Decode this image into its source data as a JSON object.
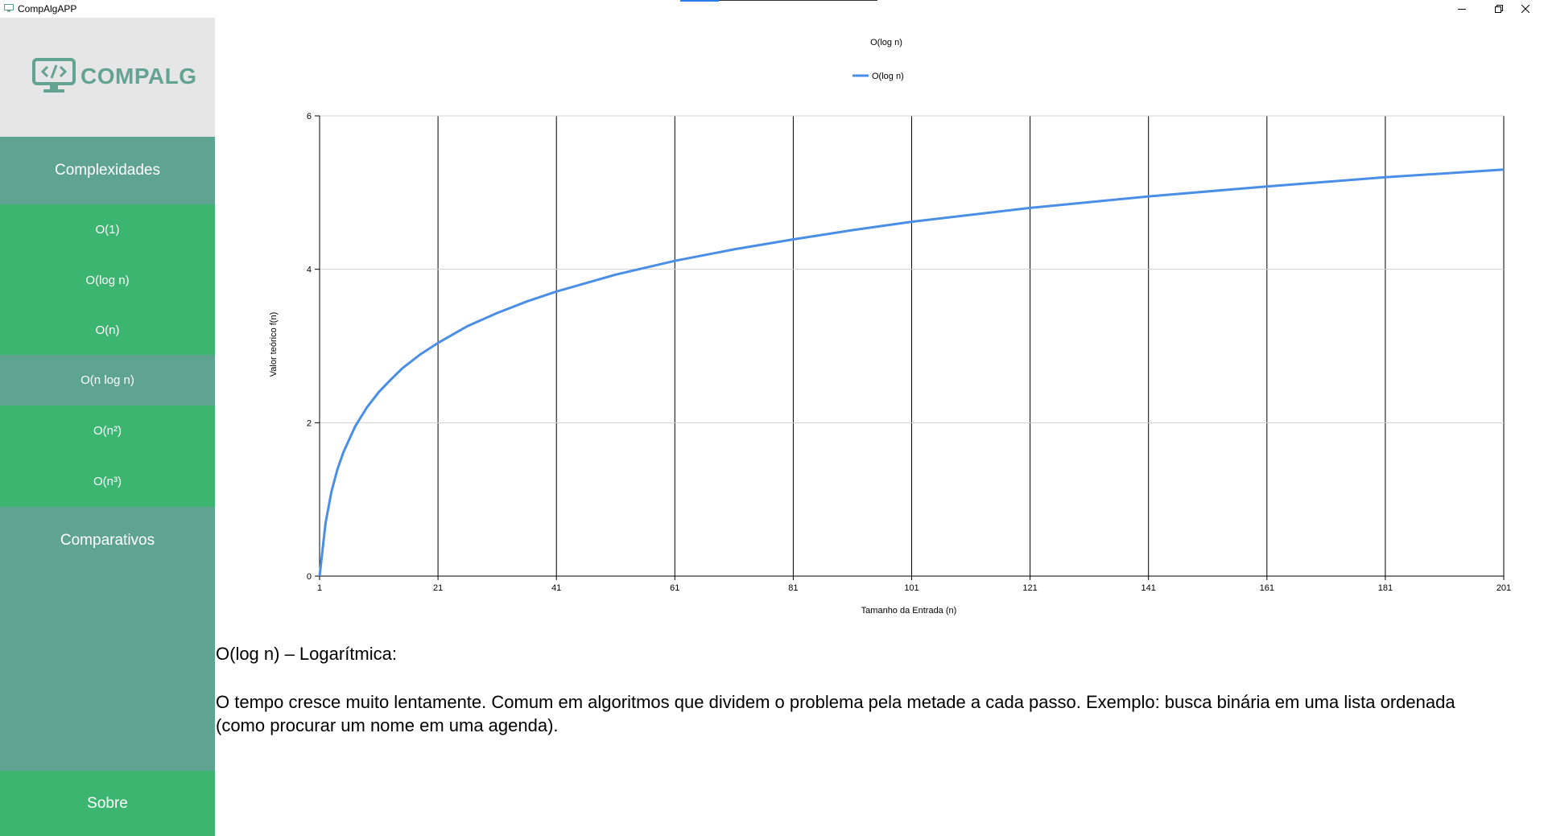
{
  "window": {
    "title": "CompAlgAPP",
    "icons": {
      "app": "monitor-icon",
      "minimize": "minimize-icon",
      "maximize": "restore-icon",
      "close": "close-icon"
    },
    "accent_color": "#2b7de9"
  },
  "sidebar": {
    "logo_text": "COMPALG",
    "logo_icon": "code-monitor-icon",
    "sections": {
      "complexidades": "Complexidades",
      "comparativos": "Comparativos",
      "sobre": "Sobre"
    },
    "items": [
      {
        "label": "O(1)",
        "active": false
      },
      {
        "label": "O(log n)",
        "active": false
      },
      {
        "label": "O(n)",
        "active": false
      },
      {
        "label": "O(n log n)",
        "active": true
      },
      {
        "label": "O(n²)",
        "active": false
      },
      {
        "label": "O(n³)",
        "active": false
      }
    ],
    "colors": {
      "logo_bg": "#e6e6e6",
      "header_bg": "#5fa392",
      "item_bg": "#3cb571",
      "active_bg": "#5fa392",
      "logo_color": "#62a391"
    }
  },
  "chart_data": {
    "type": "line",
    "title": "O(log n)",
    "xlabel": "Tamanho da Entrada (n)",
    "ylabel": "Valor teórico f(n)",
    "xlim": [
      1,
      201
    ],
    "ylim": [
      0,
      6
    ],
    "x_ticks": [
      1,
      21,
      41,
      61,
      81,
      101,
      121,
      141,
      161,
      181,
      201
    ],
    "y_ticks": [
      0,
      2,
      4,
      6
    ],
    "x_grid": true,
    "y_grid": true,
    "legend": "top-center",
    "series": [
      {
        "name": "O(log n)",
        "color": "#4a8ee6",
        "x": [
          1,
          2,
          3,
          4,
          5,
          7,
          9,
          11,
          13,
          15,
          18,
          21,
          26,
          31,
          36,
          41,
          51,
          61,
          71,
          81,
          91,
          101,
          121,
          141,
          161,
          181,
          201
        ],
        "y": [
          0,
          0.69,
          1.1,
          1.39,
          1.61,
          1.95,
          2.2,
          2.4,
          2.56,
          2.71,
          2.89,
          3.04,
          3.26,
          3.43,
          3.58,
          3.71,
          3.93,
          4.11,
          4.26,
          4.39,
          4.51,
          4.62,
          4.8,
          4.95,
          5.08,
          5.2,
          5.3
        ]
      }
    ]
  },
  "description": {
    "heading": "O(log n) – Logarítmica:",
    "body": "O tempo cresce muito lentamente. Comum em algoritmos que dividem o problema pela metade a cada passo. Exemplo: busca binária em uma lista ordenada (como procurar um nome em uma agenda)."
  }
}
